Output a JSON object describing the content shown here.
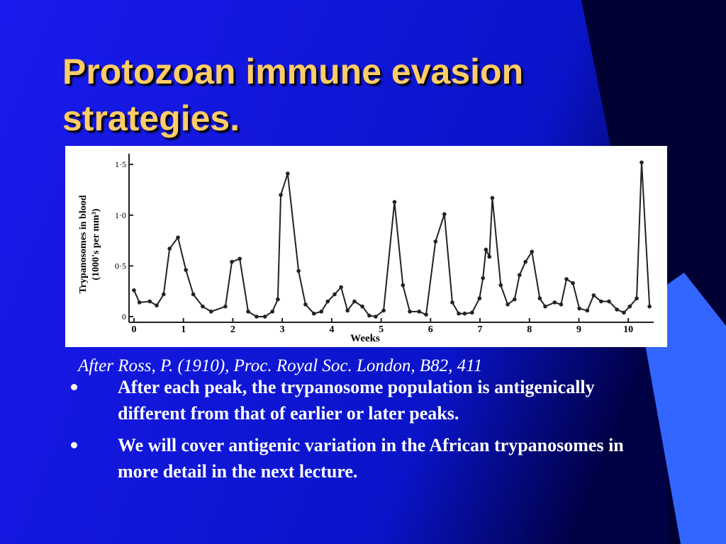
{
  "title": "Protozoan immune evasion strategies.",
  "chart_data": {
    "type": "line",
    "ylabel": [
      "Trypanosomes in blood",
      "(1000's per mm³)"
    ],
    "xlabel": "Weeks",
    "x": [
      0,
      0.11,
      0.32,
      0.46,
      0.6,
      0.72,
      0.89,
      1.05,
      1.2,
      1.39,
      1.56,
      1.85,
      1.98,
      2.14,
      2.31,
      2.48,
      2.65,
      2.8,
      2.91,
      2.97,
      3.11,
      3.33,
      3.47,
      3.64,
      3.79,
      3.92,
      4.06,
      4.19,
      4.32,
      4.46,
      4.62,
      4.76,
      4.89,
      5.05,
      5.27,
      5.44,
      5.58,
      5.77,
      5.91,
      6.1,
      6.28,
      6.44,
      6.57,
      6.69,
      6.84,
      6.99,
      7.06,
      7.12,
      7.19,
      7.25,
      7.42,
      7.56,
      7.7,
      7.8,
      7.92,
      8.05,
      8.21,
      8.32,
      8.51,
      8.64,
      8.75,
      8.88,
      9.01,
      9.17,
      9.3,
      9.45,
      9.61,
      9.77,
      9.91,
      10.03,
      10.17,
      10.27,
      10.43
    ],
    "series": [
      {
        "color": "#222222",
        "values": [
          0.26,
          0.14,
          0.15,
          0.11,
          0.22,
          0.67,
          0.78,
          0.46,
          0.22,
          0.1,
          0.05,
          0.1,
          0.54,
          0.57,
          0.05,
          0.0,
          0.0,
          0.05,
          0.17,
          1.2,
          1.41,
          0.45,
          0.12,
          0.03,
          0.05,
          0.15,
          0.22,
          0.29,
          0.06,
          0.15,
          0.1,
          0.01,
          0.0,
          0.06,
          1.13,
          0.31,
          0.05,
          0.05,
          0.02,
          0.74,
          1.01,
          0.14,
          0.03,
          0.03,
          0.04,
          0.18,
          0.38,
          0.66,
          0.59,
          1.17,
          0.31,
          0.12,
          0.17,
          0.41,
          0.54,
          0.64,
          0.18,
          0.1,
          0.14,
          0.12,
          0.37,
          0.33,
          0.08,
          0.06,
          0.21,
          0.15,
          0.15,
          0.07,
          0.04,
          0.1,
          0.18,
          1.52,
          0.1
        ]
      }
    ],
    "xlim": [
      -0.1,
      10.6
    ],
    "ylim": [
      0,
      1.55
    ],
    "xticks": [
      0,
      1,
      2,
      3,
      4,
      5,
      6,
      7,
      8,
      9,
      10
    ],
    "yticks": [
      0,
      {
        "value": 0.5,
        "label": "0·5"
      },
      {
        "value": 1.0,
        "label": "1·0"
      },
      {
        "value": 1.5,
        "label": "1·5"
      }
    ]
  },
  "caption": "After Ross, P. (1910), Proc. Royal Soc. London, B82, 411",
  "bullets": [
    "After each peak, the trypanosome population is antigenically different from that of earlier or later peaks.",
    "We will cover antigenic variation in the African trypanosomes in more detail in the next lecture."
  ]
}
